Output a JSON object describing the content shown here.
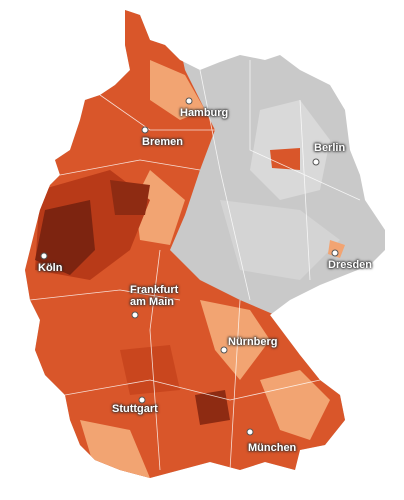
{
  "cities": [
    {
      "label": "Hamburg"
    },
    {
      "label": "Bremen"
    },
    {
      "label": "Berlin"
    },
    {
      "label": "Köln"
    },
    {
      "label": "Dresden"
    },
    {
      "label": "Frankfurt am Main"
    },
    {
      "label": "Nürnberg"
    },
    {
      "label": "Stuttgart"
    },
    {
      "label": "München"
    }
  ]
}
